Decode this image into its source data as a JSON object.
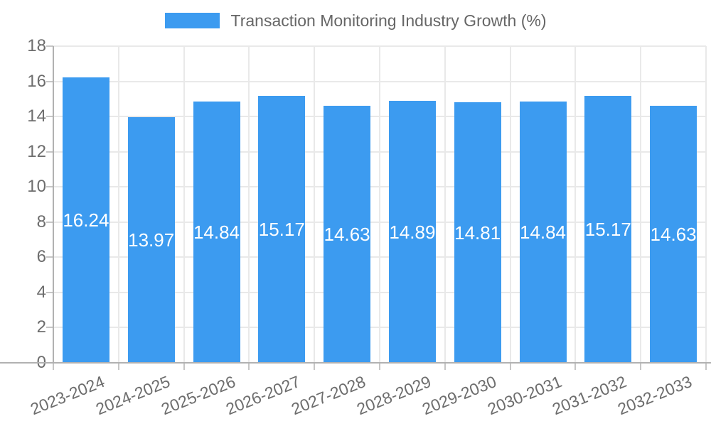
{
  "legend": {
    "label": "Transaction Monitoring Industry Growth (%)"
  },
  "colors": {
    "bar": "#3c9bf0",
    "bar_label": "#ffffff",
    "grid": "#e9e9e9",
    "axis": "#b1b1b1",
    "tick": "#c6c6c6",
    "tick_text": "#6d6d6d",
    "legend_text": "#666666"
  },
  "chart_data": {
    "type": "bar",
    "title": "Transaction Monitoring Industry Growth (%)",
    "categories": [
      "2023-2024",
      "2024-2025",
      "2025-2026",
      "2026-2027",
      "2027-2028",
      "2028-2029",
      "2029-2030",
      "2030-2031",
      "2031-2032",
      "2032-2033"
    ],
    "values": [
      16.24,
      13.97,
      14.84,
      15.17,
      14.63,
      14.89,
      14.81,
      14.84,
      15.17,
      14.63
    ],
    "value_labels": [
      "16.24",
      "13.97",
      "14.84",
      "15.17",
      "14.63",
      "14.89",
      "14.81",
      "14.84",
      "15.17",
      "14.63"
    ],
    "xlabel": "",
    "ylabel": "",
    "ylim": [
      0,
      18
    ],
    "ytick_step": 2,
    "ytick_labels": [
      "0",
      "2",
      "4",
      "6",
      "8",
      "10",
      "12",
      "14",
      "16",
      "18"
    ],
    "grid": true,
    "legend_position": "top"
  }
}
